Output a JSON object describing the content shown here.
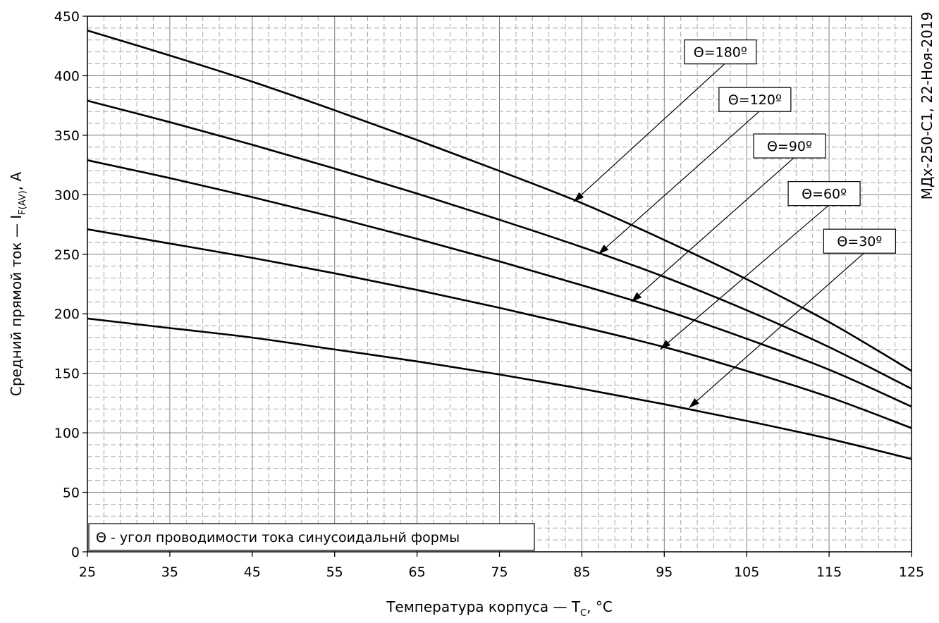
{
  "chart_data": {
    "type": "line",
    "xlabel": "Температура корпуса — T",
    "xlabel_sub": "C",
    "xlabel_tail": ", °C",
    "ylabel": "Средний прямой ток — I",
    "ylabel_sub": "F(AV)",
    "ylabel_tail": ", А",
    "xlim": [
      25,
      125
    ],
    "ylim": [
      0,
      450
    ],
    "xticks": [
      25,
      35,
      45,
      55,
      65,
      75,
      85,
      95,
      105,
      115,
      125
    ],
    "yticks": [
      0,
      50,
      100,
      150,
      200,
      250,
      300,
      350,
      400,
      450
    ],
    "x_minor_step": 2,
    "y_minor_step": 10,
    "grid": true,
    "side_label": "МДх-250-С1, 22-Ноя-2019",
    "note": "Θ - угол проводимости тока синусоидальнй формы",
    "series": [
      {
        "name": "Θ=180º",
        "label_pos": [
          101.8,
          420
        ],
        "arrow_to": [
          84,
          294
        ],
        "x": [
          25,
          35,
          45,
          55,
          65,
          75,
          85,
          95,
          105,
          115,
          125
        ],
        "y": [
          438,
          417,
          395,
          371,
          346,
          320,
          293,
          262,
          229,
          193,
          152
        ]
      },
      {
        "name": "Θ=120º",
        "label_pos": [
          106,
          380
        ],
        "arrow_to": [
          87,
          250
        ],
        "x": [
          25,
          35,
          45,
          55,
          65,
          75,
          85,
          95,
          105,
          115,
          125
        ],
        "y": [
          379,
          361,
          342,
          322,
          301,
          279,
          256,
          231,
          203,
          172,
          137
        ]
      },
      {
        "name": "Θ=90º",
        "label_pos": [
          110.2,
          341
        ],
        "arrow_to": [
          91,
          210
        ],
        "x": [
          25,
          35,
          45,
          55,
          65,
          75,
          85,
          95,
          105,
          115,
          125
        ],
        "y": [
          329,
          314,
          298,
          281,
          263,
          244,
          224,
          203,
          179,
          153,
          122
        ]
      },
      {
        "name": "Θ=60º",
        "label_pos": [
          114.4,
          301
        ],
        "arrow_to": [
          94.5,
          170
        ],
        "x": [
          25,
          35,
          45,
          55,
          65,
          75,
          85,
          95,
          105,
          115,
          125
        ],
        "y": [
          271,
          259,
          247,
          234,
          220,
          205,
          189,
          172,
          152,
          130,
          104
        ]
      },
      {
        "name": "Θ=30º",
        "label_pos": [
          118.7,
          261
        ],
        "arrow_to": [
          98,
          121
        ],
        "x": [
          25,
          35,
          45,
          55,
          65,
          75,
          85,
          95,
          105,
          115,
          125
        ],
        "y": [
          196,
          188,
          180,
          170,
          160,
          149,
          137,
          124,
          110,
          95,
          78
        ]
      }
    ]
  }
}
